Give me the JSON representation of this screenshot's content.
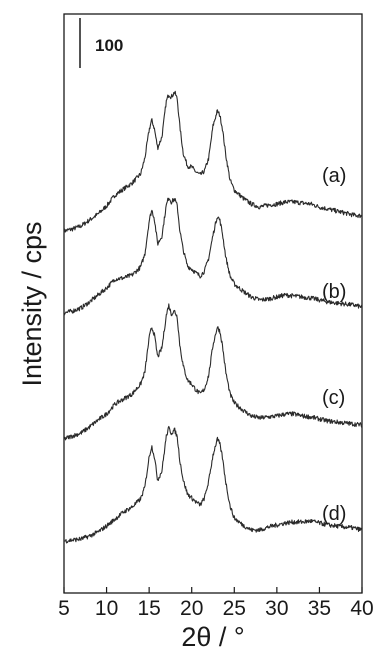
{
  "chart_data": {
    "type": "line",
    "xlabel": "2θ / °",
    "ylabel": "Intensity / cps",
    "xlim": [
      5,
      40
    ],
    "x_ticks": [
      5,
      10,
      15,
      20,
      25,
      30,
      35,
      40
    ],
    "y_ticks_shown": false,
    "scale_bar": {
      "label": "100",
      "value": 100
    },
    "grid": false,
    "legend": "none",
    "x": [
      5,
      6,
      7,
      8,
      9,
      10,
      11,
      12,
      13,
      14,
      14.5,
      15,
      15.3,
      15.6,
      16,
      16.5,
      17,
      17.3,
      17.6,
      18,
      18.3,
      18.6,
      19,
      19.5,
      20,
      20.5,
      21,
      21.5,
      22,
      22.5,
      23,
      23.3,
      23.6,
      24,
      24.5,
      25,
      26,
      27,
      28,
      29,
      30,
      31,
      32,
      33,
      34,
      35,
      36,
      37,
      38,
      39,
      40
    ],
    "series": [
      {
        "name": "(a)",
        "values": [
          30,
          34,
          40,
          52,
          64,
          80,
          102,
          114,
          126,
          144,
          176,
          232,
          252,
          236,
          196,
          218,
          288,
          304,
          298,
          308,
          294,
          240,
          186,
          160,
          158,
          148,
          142,
          150,
          176,
          240,
          270,
          262,
          236,
          182,
          132,
          112,
          96,
          84,
          78,
          82,
          84,
          88,
          88,
          86,
          84,
          78,
          74,
          70,
          66,
          62,
          60
        ]
      },
      {
        "name": "(b)",
        "values": [
          34,
          38,
          44,
          56,
          70,
          84,
          102,
          104,
          110,
          126,
          152,
          218,
          240,
          224,
          172,
          188,
          248,
          266,
          256,
          262,
          248,
          200,
          160,
          128,
          122,
          114,
          108,
          118,
          144,
          190,
          228,
          220,
          194,
          146,
          108,
          92,
          78,
          66,
          60,
          62,
          66,
          70,
          68,
          66,
          64,
          60,
          56,
          54,
          52,
          50,
          46
        ]
      },
      {
        "name": "(c)",
        "values": [
          26,
          32,
          38,
          50,
          64,
          76,
          96,
          106,
          116,
          136,
          160,
          228,
          250,
          236,
          190,
          208,
          272,
          294,
          276,
          282,
          270,
          214,
          172,
          144,
          136,
          124,
          116,
          126,
          154,
          214,
          250,
          242,
          214,
          160,
          116,
          98,
          84,
          72,
          68,
          70,
          72,
          76,
          76,
          72,
          70,
          66,
          62,
          60,
          58,
          56,
          54
        ]
      },
      {
        "name": "(d)",
        "values": [
          28,
          30,
          32,
          38,
          46,
          58,
          72,
          86,
          96,
          112,
          136,
          196,
          218,
          198,
          150,
          168,
          236,
          254,
          244,
          250,
          236,
          190,
          150,
          122,
          114,
          106,
          100,
          114,
          148,
          200,
          232,
          222,
          196,
          146,
          98,
          74,
          60,
          50,
          50,
          56,
          60,
          64,
          66,
          66,
          68,
          64,
          60,
          58,
          56,
          54,
          50
        ]
      }
    ]
  }
}
